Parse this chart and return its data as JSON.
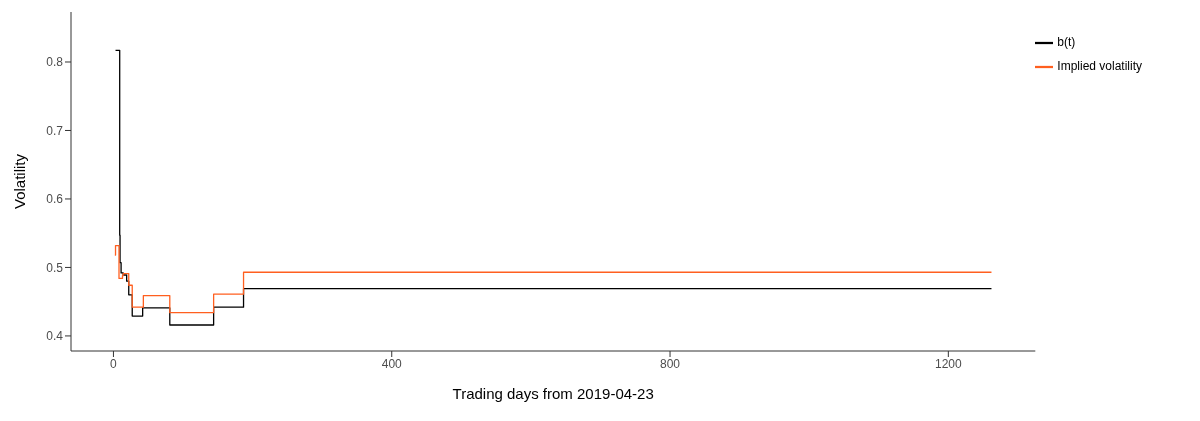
{
  "chart_data": {
    "type": "step",
    "xlabel": "Trading days from 2019-04-23",
    "ylabel": "Volatility",
    "xlim": [
      -61,
      1325
    ],
    "ylim": [
      0.378,
      0.873
    ],
    "xticks": [
      0,
      400,
      800,
      1200
    ],
    "yticks": [
      0.4,
      0.5,
      0.6,
      0.7,
      0.8
    ],
    "grid": false,
    "legend": "top right",
    "series": [
      {
        "name": "b(t)",
        "color": "#000000",
        "x": [
          3,
          9,
          9.5,
          11,
          14,
          19,
          22,
          27,
          42,
          81,
          144,
          187,
          1262
        ],
        "values": [
          0.817,
          0.547,
          0.507,
          0.492,
          0.489,
          0.48,
          0.46,
          0.429,
          0.441,
          0.416,
          0.442,
          0.469,
          0.469
        ]
      },
      {
        "name": "Implied volatility",
        "color": "#ff5f1f",
        "x": [
          2,
          3,
          8,
          13,
          14,
          22,
          27,
          43,
          81,
          144,
          187,
          1262
        ],
        "values": [
          0.518,
          0.532,
          0.484,
          0.488,
          0.491,
          0.474,
          0.442,
          0.459,
          0.434,
          0.461,
          0.493,
          0.493
        ]
      }
    ]
  }
}
